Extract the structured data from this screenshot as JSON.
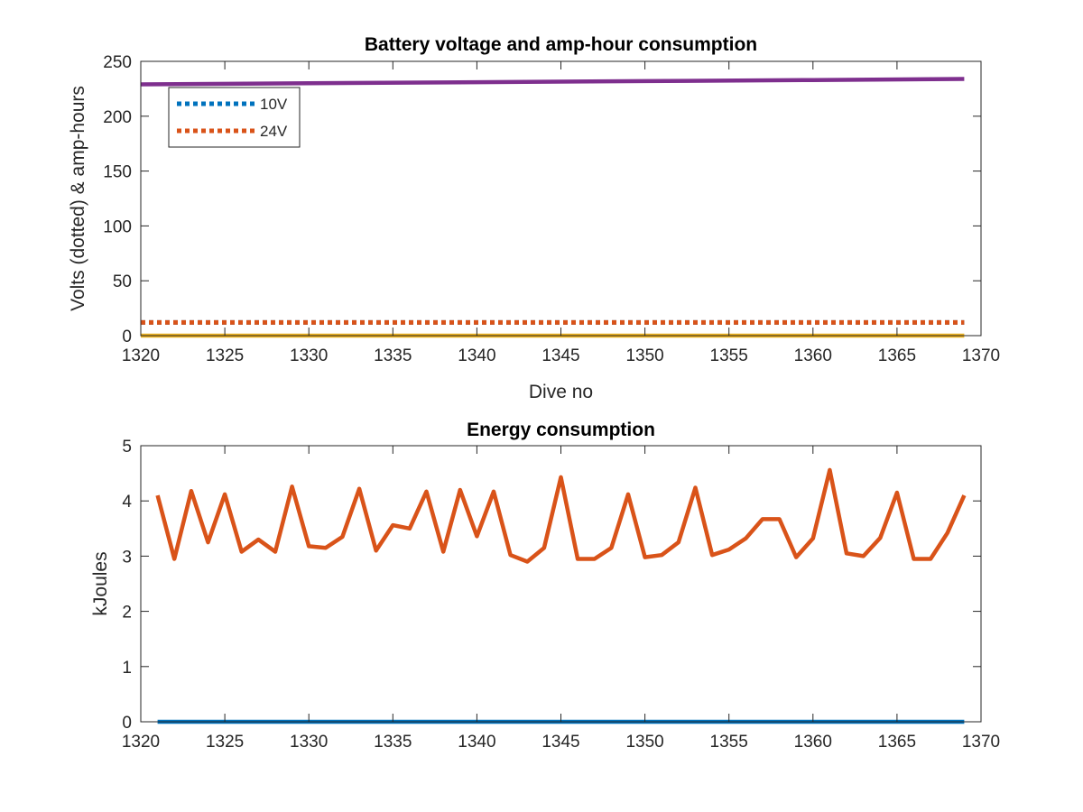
{
  "chart_data": [
    {
      "type": "line",
      "title": "Battery voltage and amp-hour consumption",
      "xlabel": "Dive no",
      "ylabel": "Volts (dotted) & amp-hours",
      "xlim": [
        1320,
        1370
      ],
      "ylim": [
        0,
        250
      ],
      "xticks": [
        1320,
        1325,
        1330,
        1335,
        1340,
        1345,
        1350,
        1355,
        1360,
        1365,
        1370
      ],
      "yticks": [
        0,
        50,
        100,
        150,
        200,
        250
      ],
      "grid": false,
      "legend_position": "top-left",
      "series": [
        {
          "name": "10V",
          "style": "dotted",
          "color": "#0072BD",
          "x": [
            1320,
            1369
          ],
          "y": [
            12,
            12
          ]
        },
        {
          "name": "24V",
          "style": "dotted",
          "color": "#D95319",
          "x": [
            1320,
            1369
          ],
          "y": [
            12,
            12
          ]
        },
        {
          "style": "solid",
          "color": "#EDB120",
          "x": [
            1320,
            1369
          ],
          "y": [
            0,
            0
          ]
        },
        {
          "style": "solid",
          "color": "#7E2F8E",
          "x": [
            1320,
            1330,
            1340,
            1350,
            1360,
            1369
          ],
          "y": [
            229,
            230,
            231,
            232,
            233,
            234
          ]
        }
      ]
    },
    {
      "type": "line",
      "title": "Energy consumption",
      "xlabel": "",
      "ylabel": "kJoules",
      "xlim": [
        1320,
        1370
      ],
      "ylim": [
        0,
        5
      ],
      "xticks": [
        1320,
        1325,
        1330,
        1335,
        1340,
        1345,
        1350,
        1355,
        1360,
        1365,
        1370
      ],
      "yticks": [
        0,
        1,
        2,
        3,
        4,
        5
      ],
      "grid": false,
      "series": [
        {
          "style": "solid",
          "color": "#0072BD",
          "x": [
            1321,
            1369
          ],
          "y": [
            0,
            0
          ]
        },
        {
          "style": "solid",
          "color": "#D95319",
          "x": [
            1321,
            1322,
            1323,
            1324,
            1325,
            1326,
            1327,
            1328,
            1329,
            1330,
            1331,
            1332,
            1333,
            1334,
            1335,
            1336,
            1337,
            1338,
            1339,
            1340,
            1341,
            1342,
            1343,
            1344,
            1345,
            1346,
            1347,
            1348,
            1349,
            1350,
            1351,
            1352,
            1353,
            1354,
            1355,
            1356,
            1357,
            1358,
            1359,
            1360,
            1361,
            1362,
            1363,
            1364,
            1365,
            1366,
            1367,
            1368,
            1369
          ],
          "y": [
            4.1,
            2.95,
            4.18,
            3.25,
            4.12,
            3.08,
            3.3,
            3.08,
            4.26,
            3.18,
            3.15,
            3.35,
            4.22,
            3.1,
            3.56,
            3.5,
            4.17,
            3.08,
            4.2,
            3.36,
            4.17,
            3.02,
            2.9,
            3.15,
            4.43,
            2.95,
            2.95,
            3.15,
            4.12,
            2.98,
            3.02,
            3.25,
            4.24,
            3.02,
            3.12,
            3.32,
            3.67,
            3.67,
            2.98,
            3.32,
            4.56,
            3.05,
            3.0,
            3.33,
            4.15,
            2.95,
            2.95,
            3.42,
            4.1
          ]
        }
      ]
    }
  ]
}
